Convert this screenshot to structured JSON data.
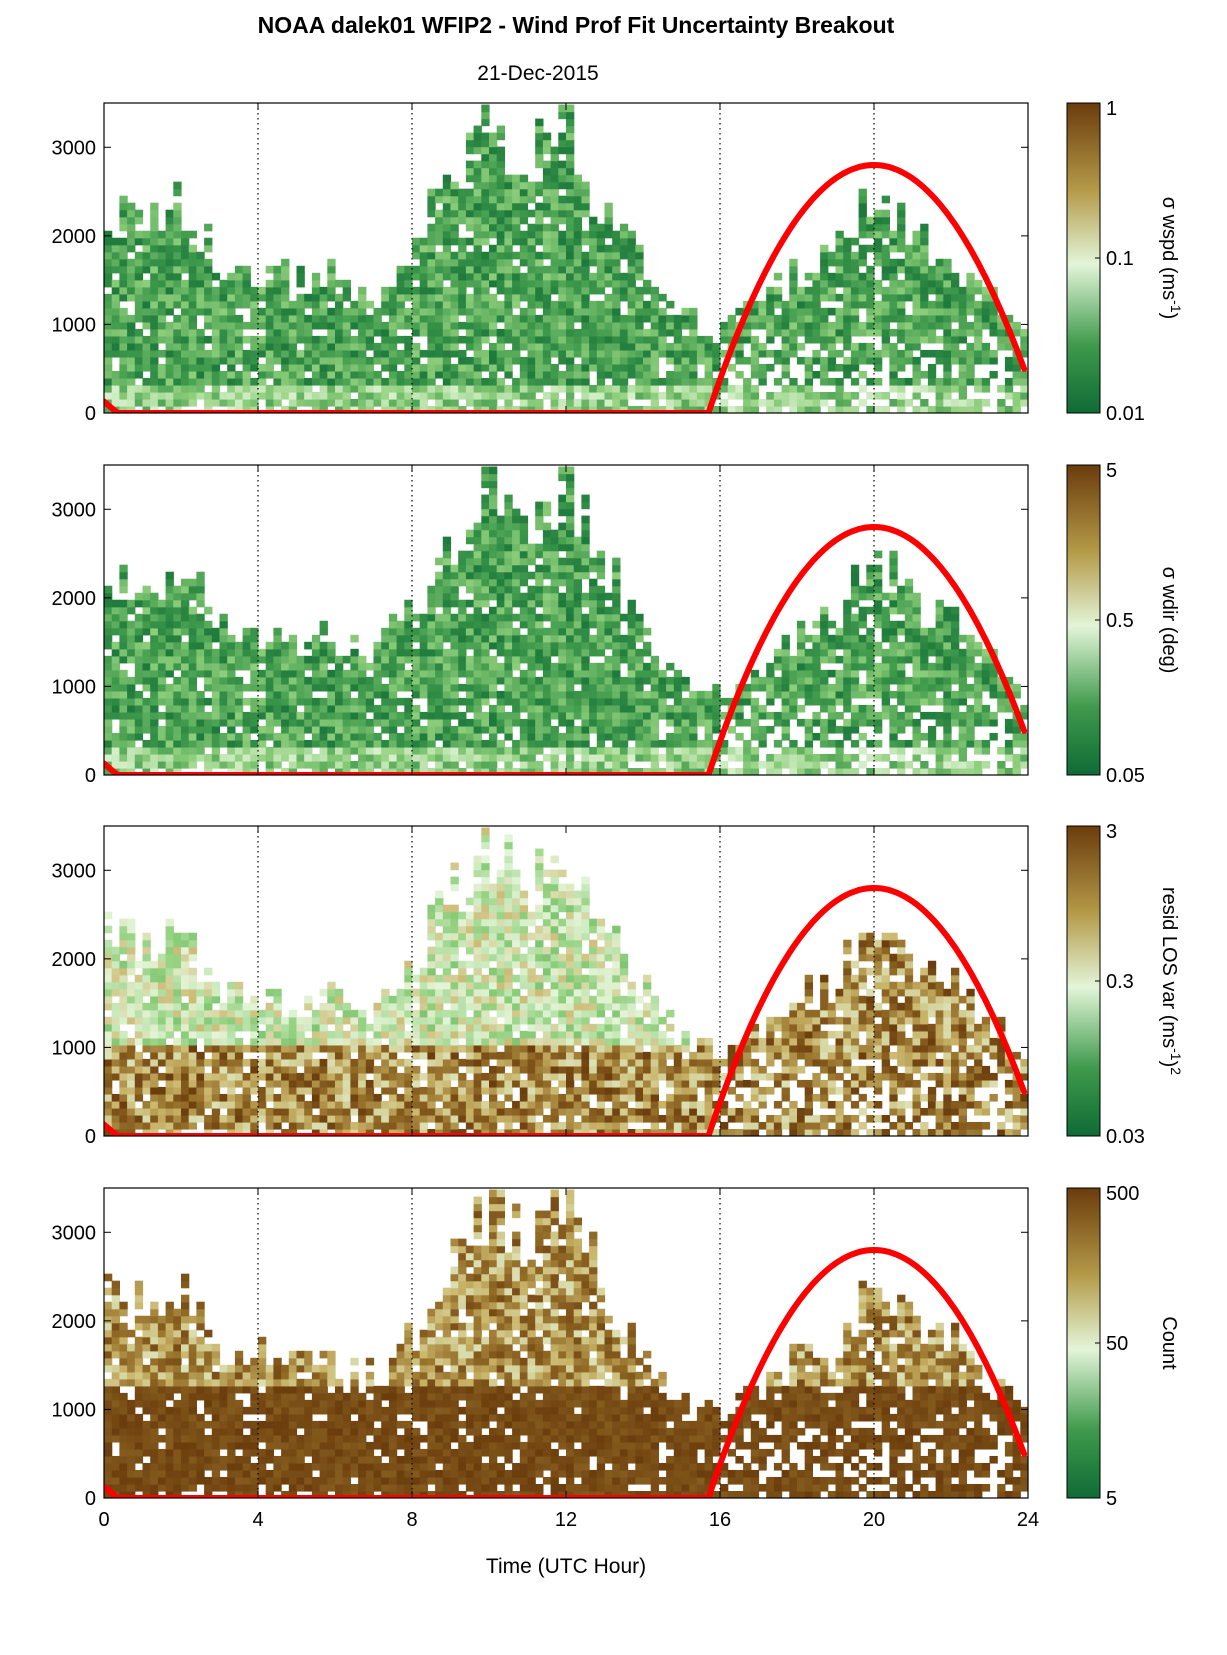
{
  "title": "NOAA dalek01 WFIP2 - Wind Prof Fit Uncertainty Breakout",
  "subtitle": "21-Dec-2015",
  "xlabel": "Time (UTC Hour)",
  "colors": {
    "curve": "#ff0000",
    "scale_low": "#0f6b35",
    "scale_mid": "#e3f5d8",
    "scale_high": "#6b3c0c",
    "axis": "#000000"
  },
  "chart_data": [
    {
      "type": "heatmap",
      "xlim": [
        0,
        24
      ],
      "ylim": [
        0,
        3500
      ],
      "xticks": [
        "0",
        "4",
        "8",
        "12",
        "16",
        "20",
        "24"
      ],
      "yticks": [
        "0",
        "1000",
        "2000",
        "3000"
      ],
      "vertical_reference_lines_hours": [
        4,
        8,
        16,
        20
      ],
      "colorbar": {
        "label": "σ wspd (ms",
        "label_sup": "-1",
        "label_tail": ")",
        "ticks": [
          "1",
          "0.1",
          "0.01"
        ],
        "scale": "log"
      },
      "curve": {
        "peak_hour": 20,
        "peak_value": 2800,
        "rise_hour": 15.7,
        "end_hour": 23.9,
        "end_value": 480
      }
    },
    {
      "type": "heatmap",
      "xlim": [
        0,
        24
      ],
      "ylim": [
        0,
        3500
      ],
      "xticks": [
        "0",
        "4",
        "8",
        "12",
        "16",
        "20",
        "24"
      ],
      "yticks": [
        "0",
        "1000",
        "2000",
        "3000"
      ],
      "vertical_reference_lines_hours": [
        4,
        8,
        16,
        20
      ],
      "colorbar": {
        "label": "σ wdir (deg)",
        "label_sup": "",
        "label_tail": "",
        "ticks": [
          "5",
          "0.5",
          "0.05"
        ],
        "scale": "log"
      },
      "curve": {
        "peak_hour": 20,
        "peak_value": 2800,
        "rise_hour": 15.7,
        "end_hour": 23.9,
        "end_value": 480
      }
    },
    {
      "type": "heatmap",
      "xlim": [
        0,
        24
      ],
      "ylim": [
        0,
        3500
      ],
      "xticks": [
        "0",
        "4",
        "8",
        "12",
        "16",
        "20",
        "24"
      ],
      "yticks": [
        "0",
        "1000",
        "2000",
        "3000"
      ],
      "vertical_reference_lines_hours": [
        4,
        8,
        16,
        20
      ],
      "colorbar": {
        "label": "resid LOS var (ms",
        "label_sup": "-1",
        "label_tail": ")",
        "label_sup2": "2",
        "ticks": [
          "3",
          "0.3",
          "0.03"
        ],
        "scale": "log"
      },
      "curve": {
        "peak_hour": 20,
        "peak_value": 2800,
        "rise_hour": 15.7,
        "end_hour": 23.9,
        "end_value": 480
      }
    },
    {
      "type": "heatmap",
      "xlim": [
        0,
        24
      ],
      "ylim": [
        0,
        3500
      ],
      "xticks": [
        "0",
        "4",
        "8",
        "12",
        "16",
        "20",
        "24"
      ],
      "yticks": [
        "0",
        "1000",
        "2000",
        "3000"
      ],
      "vertical_reference_lines_hours": [
        4,
        8,
        16,
        20
      ],
      "colorbar": {
        "label": "Count",
        "label_sup": "",
        "label_tail": "",
        "ticks": [
          "500",
          "50",
          "5"
        ],
        "scale": "log"
      },
      "curve": {
        "peak_hour": 20,
        "peak_value": 2800,
        "rise_hour": 15.7,
        "end_hour": 23.9,
        "end_value": 480
      }
    }
  ]
}
